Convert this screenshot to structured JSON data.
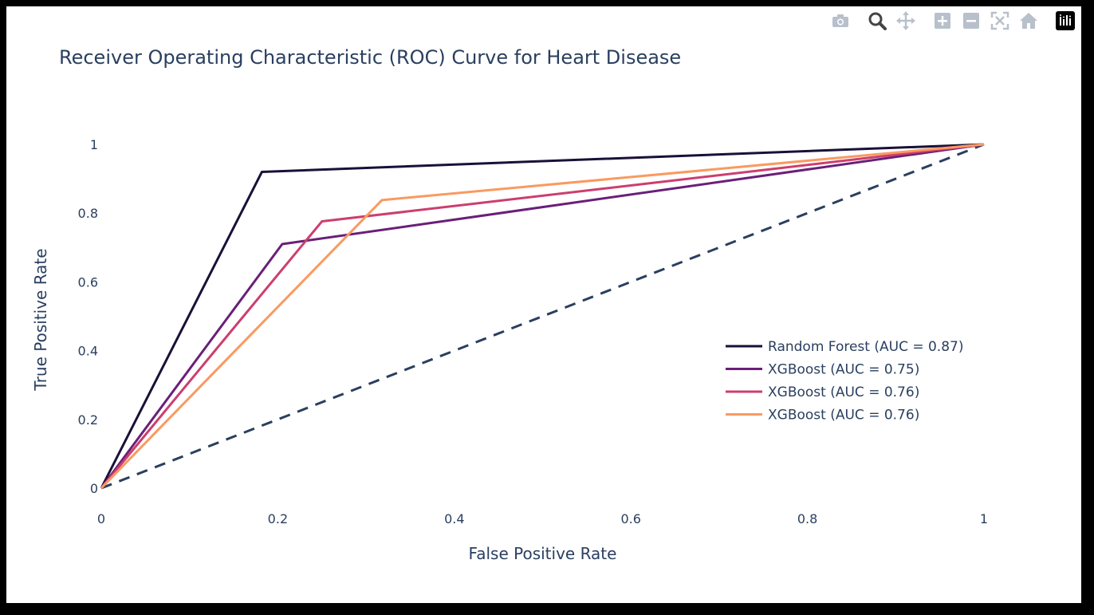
{
  "modebar": {
    "icons": [
      "camera-icon",
      "zoom-icon",
      "pan-icon",
      "zoom-in-icon",
      "zoom-out-icon",
      "autoscale-icon",
      "home-icon",
      "plotly-logo-icon"
    ]
  },
  "colors": {
    "text": "#2a3f5f",
    "random_forest": "#1a1038",
    "xgboost_1": "#6a1f78",
    "xgboost_2": "#cc3e6e",
    "xgboost_3": "#f99a60",
    "diagonal": "#2a3f5f"
  },
  "chart_data": {
    "type": "line",
    "title": "Receiver Operating Characteristic (ROC) Curve for Heart Disease",
    "xlabel": "False Positive Rate",
    "ylabel": "True Positive Rate",
    "xlim": [
      0,
      1
    ],
    "ylim": [
      0,
      1
    ],
    "x_ticks": [
      "0",
      "0.2",
      "0.4",
      "0.6",
      "0.8",
      "1"
    ],
    "y_ticks": [
      "0",
      "0.2",
      "0.4",
      "0.6",
      "0.8",
      "1"
    ],
    "grid": false,
    "legend_position": "bottom-right",
    "series": [
      {
        "name": "Random Forest (AUC = 0.87)",
        "color": "#1a1038",
        "dash": false,
        "x": [
          0,
          0.182,
          1
        ],
        "y": [
          0,
          0.92,
          1
        ]
      },
      {
        "name": "XGBoost (AUC = 0.75)",
        "color": "#6a1f78",
        "dash": false,
        "x": [
          0,
          0.205,
          1
        ],
        "y": [
          0,
          0.71,
          1
        ]
      },
      {
        "name": "XGBoost (AUC = 0.76)",
        "color": "#cc3e6e",
        "dash": false,
        "x": [
          0,
          0.25,
          1
        ],
        "y": [
          0,
          0.776,
          1
        ]
      },
      {
        "name": "XGBoost (AUC = 0.76)",
        "color": "#f99a60",
        "dash": false,
        "x": [
          0,
          0.318,
          1
        ],
        "y": [
          0,
          0.838,
          1
        ]
      }
    ],
    "reference_line": {
      "color": "#2a3f5f",
      "dash": true,
      "x": [
        0,
        1
      ],
      "y": [
        0,
        1
      ]
    }
  }
}
